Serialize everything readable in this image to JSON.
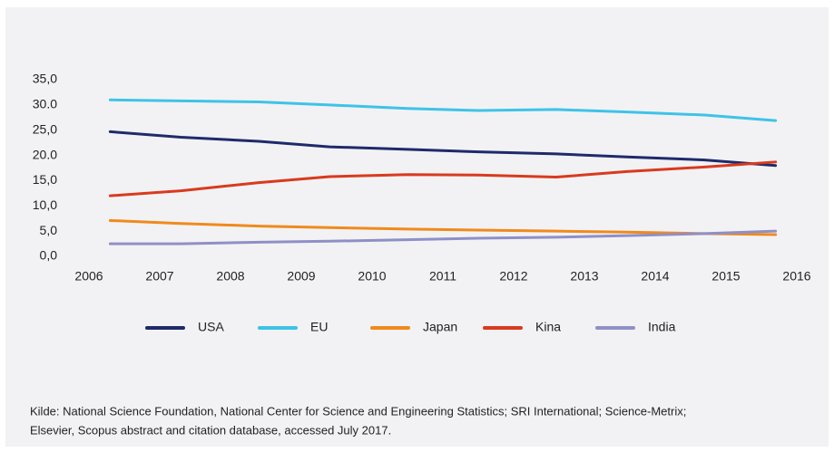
{
  "chart_data": {
    "type": "line",
    "x": [
      2006.3,
      2007.3,
      2008.4,
      2009.4,
      2010.5,
      2011.5,
      2012.6,
      2013.6,
      2014.7,
      2015.7
    ],
    "series": [
      {
        "name": "USA",
        "color": "#1f2a6b",
        "values": [
          24.7,
          23.6,
          22.8,
          21.7,
          21.2,
          20.7,
          20.3,
          19.7,
          19.1,
          18.0
        ]
      },
      {
        "name": "EU",
        "color": "#3ec3e8",
        "values": [
          31.0,
          30.8,
          30.6,
          30.0,
          29.3,
          28.9,
          29.1,
          28.6,
          28.0,
          26.9
        ]
      },
      {
        "name": "Japan",
        "color": "#f08a1c",
        "values": [
          7.1,
          6.5,
          6.0,
          5.7,
          5.4,
          5.2,
          5.0,
          4.8,
          4.5,
          4.3
        ]
      },
      {
        "name": "Kina",
        "color": "#d93a1e",
        "values": [
          12.0,
          13.0,
          14.6,
          15.8,
          16.2,
          16.1,
          15.7,
          16.8,
          17.7,
          18.7
        ]
      },
      {
        "name": "India",
        "color": "#8f8fc7",
        "values": [
          2.5,
          2.5,
          2.8,
          3.0,
          3.3,
          3.6,
          3.8,
          4.1,
          4.5,
          5.0
        ]
      }
    ],
    "xlim": [
      2006,
      2016
    ],
    "xticks": [
      2006,
      2007,
      2008,
      2009,
      2010,
      2011,
      2012,
      2013,
      2014,
      2015,
      2016
    ],
    "ylim": [
      0,
      35
    ],
    "yticks": [
      {
        "value": 35,
        "label": "35,0"
      },
      {
        "value": 30,
        "label": "30.0"
      },
      {
        "value": 25,
        "label": "25,0"
      },
      {
        "value": 20,
        "label": "20.0"
      },
      {
        "value": 15,
        "label": "15,0"
      },
      {
        "value": 10,
        "label": "10,0"
      },
      {
        "value": 5,
        "label": "5,0"
      },
      {
        "value": 0,
        "label": "0,0"
      }
    ],
    "grid": false,
    "legend": "bottom",
    "source": [
      "Kilde: National Science Foundation, National Center for Science and Engineering Statistics; SRI International; Science-Metrix;",
      "Elsevier, Scopus abstract and citation database, accessed July 2017."
    ]
  }
}
